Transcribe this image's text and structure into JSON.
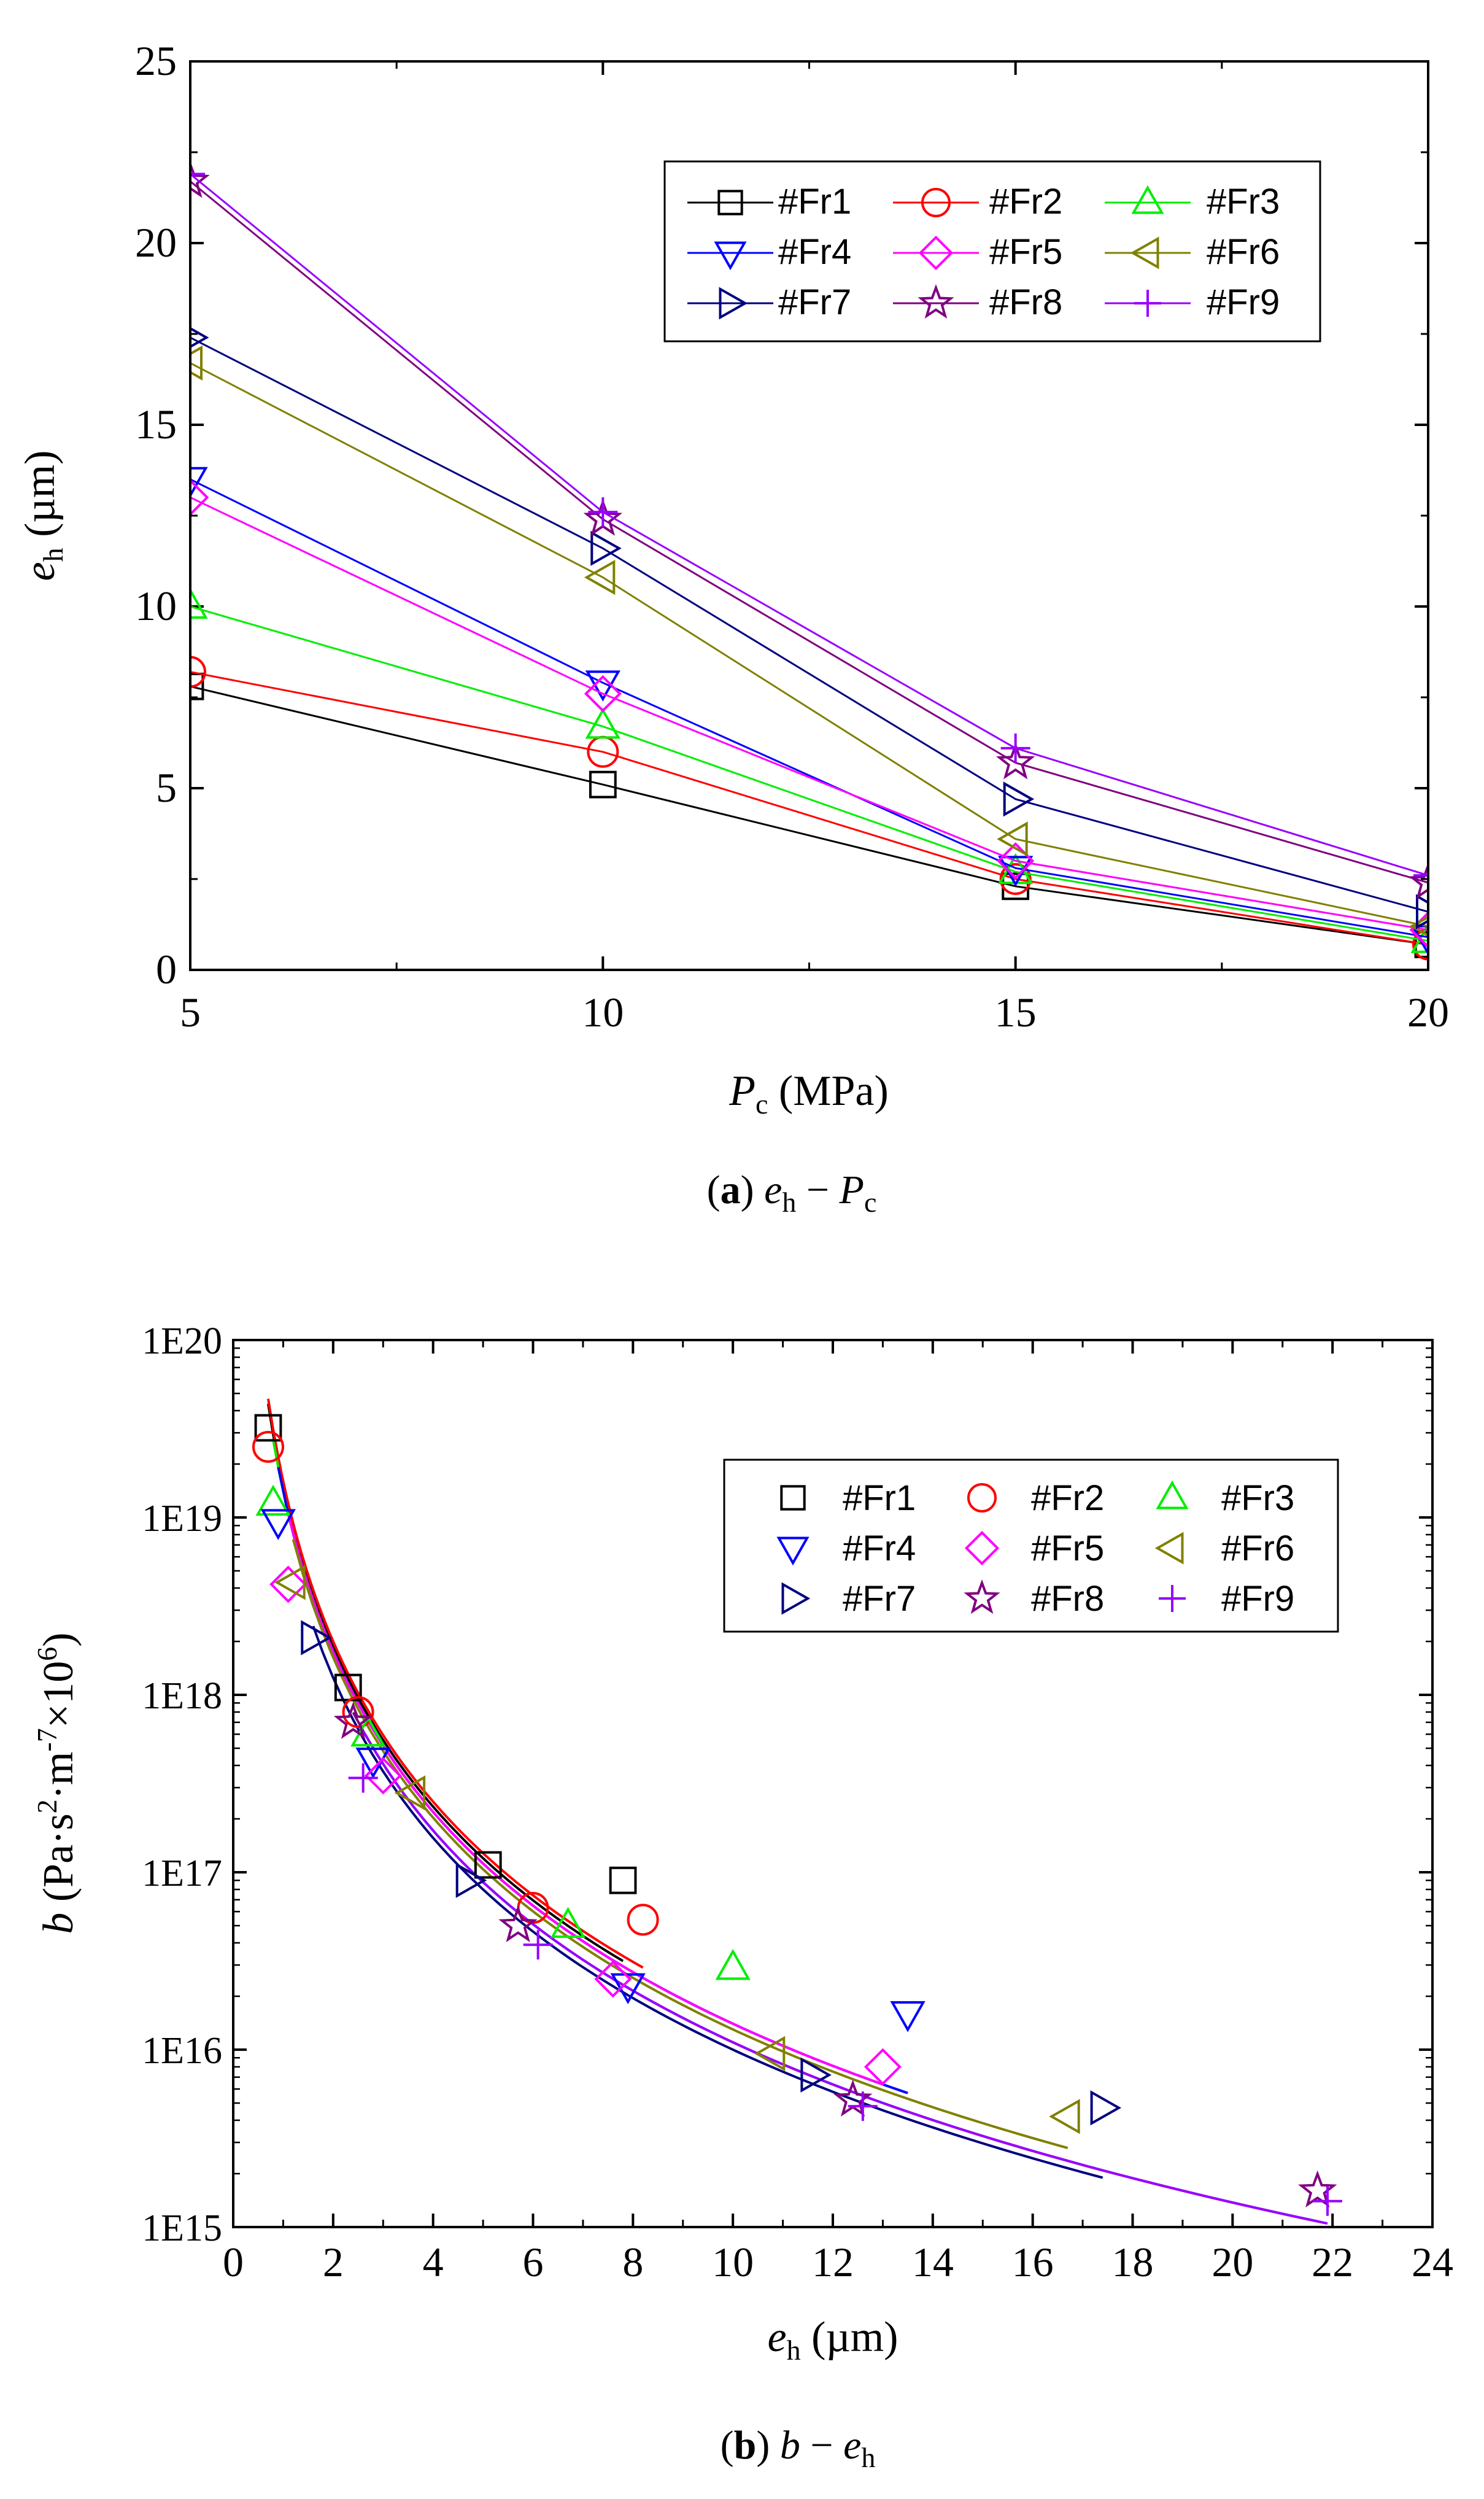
{
  "chart_data": [
    {
      "id": "a",
      "type": "line",
      "caption": {
        "label": "a",
        "y_sym": "e",
        "y_sub": "h",
        "sep": "−",
        "x_sym": "P",
        "x_sub": "c"
      },
      "xlabel": {
        "sym": "P",
        "sub": "c",
        "unit": "(MPa)"
      },
      "ylabel": {
        "sym": "e",
        "sub": "h",
        "unit": "(µm)"
      },
      "xlim": [
        5,
        20
      ],
      "ylim": [
        0,
        25
      ],
      "xticks": [
        5,
        10,
        15,
        20
      ],
      "yticks": [
        0,
        5,
        10,
        15,
        20,
        25
      ],
      "x": [
        5,
        10,
        15,
        20
      ],
      "series": [
        {
          "name": "#Fr1",
          "color": "#000000",
          "marker": "square",
          "values": [
            7.8,
            5.1,
            2.3,
            0.7
          ]
        },
        {
          "name": "#Fr2",
          "color": "#ff0000",
          "marker": "circle",
          "values": [
            8.2,
            6.0,
            2.5,
            0.7
          ]
        },
        {
          "name": "#Fr3",
          "color": "#00ee00",
          "marker": "triangle-up",
          "values": [
            10.0,
            6.7,
            2.7,
            0.8
          ]
        },
        {
          "name": "#Fr4",
          "color": "#0000ff",
          "marker": "triangle-down",
          "values": [
            13.5,
            7.9,
            2.8,
            0.9
          ]
        },
        {
          "name": "#Fr5",
          "color": "#ff00ff",
          "marker": "diamond",
          "values": [
            13.0,
            7.6,
            3.0,
            1.1
          ]
        },
        {
          "name": "#Fr6",
          "color": "#808000",
          "marker": "triangle-left",
          "values": [
            16.7,
            10.8,
            3.6,
            1.2
          ]
        },
        {
          "name": "#Fr7",
          "color": "#000080",
          "marker": "triangle-right",
          "values": [
            17.4,
            11.6,
            4.7,
            1.6
          ]
        },
        {
          "name": "#Fr8",
          "color": "#800080",
          "marker": "star",
          "values": [
            21.7,
            12.4,
            5.7,
            2.4
          ]
        },
        {
          "name": "#Fr9",
          "color": "#9900ff",
          "marker": "plus",
          "values": [
            21.9,
            12.6,
            6.1,
            2.6
          ]
        }
      ]
    },
    {
      "id": "b",
      "type": "scatter",
      "caption": {
        "label": "b",
        "y_sym": "b",
        "sep": "−",
        "x_sym": "e",
        "x_sub": "h"
      },
      "xlabel": {
        "sym": "e",
        "sub": "h",
        "unit": "(µm)"
      },
      "ylabel": {
        "sym": "b",
        "unit": "(Pa·s",
        "sup1": "2",
        "mid": "·m",
        "sup2": "-7",
        "mid2": "×10",
        "sup3": "6",
        "end": ")"
      },
      "yscale": "log",
      "xlim": [
        0,
        24
      ],
      "ylim_exp": [
        15,
        20
      ],
      "xticks": [
        0,
        2,
        4,
        6,
        8,
        10,
        12,
        14,
        16,
        18,
        20,
        22,
        24
      ],
      "ytick_labels": [
        "1E15",
        "1E16",
        "1E17",
        "1E18",
        "1E19",
        "1E20"
      ],
      "series": [
        {
          "name": "#Fr1",
          "color": "#000000",
          "marker": "square",
          "x": [
            0.7,
            2.3,
            5.1,
            7.8
          ],
          "y": [
            3.2e+19,
            1.1e+18,
            1.1e+17,
            9e+16
          ]
        },
        {
          "name": "#Fr2",
          "color": "#ff0000",
          "marker": "circle",
          "x": [
            0.7,
            2.5,
            6.0,
            8.2
          ],
          "y": [
            2.5e+19,
            8e+17,
            6.3e+16,
            5.4e+16
          ]
        },
        {
          "name": "#Fr3",
          "color": "#00ee00",
          "marker": "triangle-up",
          "x": [
            0.8,
            2.7,
            6.7,
            10.0
          ],
          "y": [
            1.2e+19,
            6e+17,
            5e+16,
            2.9e+16
          ]
        },
        {
          "name": "#Fr4",
          "color": "#0000ff",
          "marker": "triangle-down",
          "x": [
            0.9,
            2.8,
            7.9,
            13.5
          ],
          "y": [
            9.5e+18,
            4.3e+17,
            2.3e+16,
            1.6e+16
          ]
        },
        {
          "name": "#Fr5",
          "color": "#ff00ff",
          "marker": "diamond",
          "x": [
            1.1,
            3.0,
            7.6,
            13.0
          ],
          "y": [
            4.2e+18,
            3.5e+17,
            2.5e+16,
            8000000000000000.0
          ]
        },
        {
          "name": "#Fr6",
          "color": "#808000",
          "marker": "triangle-left",
          "x": [
            1.2,
            3.6,
            10.8,
            16.7
          ],
          "y": [
            4.3e+18,
            2.8e+17,
            9500000000000000.0,
            4200000000000000.0
          ]
        },
        {
          "name": "#Fr7",
          "color": "#000080",
          "marker": "triangle-right",
          "x": [
            1.6,
            4.7,
            11.6,
            17.4
          ],
          "y": [
            2.1e+18,
            9e+16,
            7200000000000000.0,
            4700000000000000.0
          ]
        },
        {
          "name": "#Fr8",
          "color": "#800080",
          "marker": "star",
          "x": [
            2.4,
            5.7,
            12.4,
            21.7
          ],
          "y": [
            7e+17,
            5e+16,
            5200000000000000.0,
            1600000000000000.0
          ]
        },
        {
          "name": "#Fr9",
          "color": "#9900ff",
          "marker": "plus",
          "x": [
            2.6,
            6.1,
            12.6,
            21.9
          ],
          "y": [
            3.4e+17,
            3.9e+16,
            4800000000000000.0,
            1400000000000000.0
          ]
        }
      ],
      "fits": [
        {
          "name": "#Fr1",
          "color": "#000000",
          "A": 1.5e+19,
          "n": 3.0,
          "xmin": 0.7,
          "xmax": 7.8
        },
        {
          "name": "#Fr2",
          "color": "#ff0000",
          "A": 1.6e+19,
          "n": 3.0,
          "xmin": 0.7,
          "xmax": 8.2
        },
        {
          "name": "#Fr3",
          "color": "#00ee00",
          "A": 1.4e+19,
          "n": 3.0,
          "xmin": 0.8,
          "xmax": 10.0
        },
        {
          "name": "#Fr4",
          "color": "#0000ff",
          "A": 1.4e+19,
          "n": 3.0,
          "xmin": 0.9,
          "xmax": 13.5
        },
        {
          "name": "#Fr5",
          "color": "#ff00ff",
          "A": 1.4e+19,
          "n": 3.0,
          "xmin": 1.1,
          "xmax": 13.0
        },
        {
          "name": "#Fr6",
          "color": "#808000",
          "A": 1.3e+19,
          "n": 3.0,
          "xmin": 1.2,
          "xmax": 16.7
        },
        {
          "name": "#Fr7",
          "color": "#000080",
          "A": 1e+19,
          "n": 3.0,
          "xmin": 1.6,
          "xmax": 17.4
        },
        {
          "name": "#Fr8",
          "color": "#800080",
          "A": 1.1e+19,
          "n": 3.0,
          "xmin": 2.4,
          "xmax": 21.7
        },
        {
          "name": "#Fr9",
          "color": "#9900ff",
          "A": 1.1e+19,
          "n": 3.0,
          "xmin": 2.6,
          "xmax": 21.9
        }
      ]
    }
  ]
}
